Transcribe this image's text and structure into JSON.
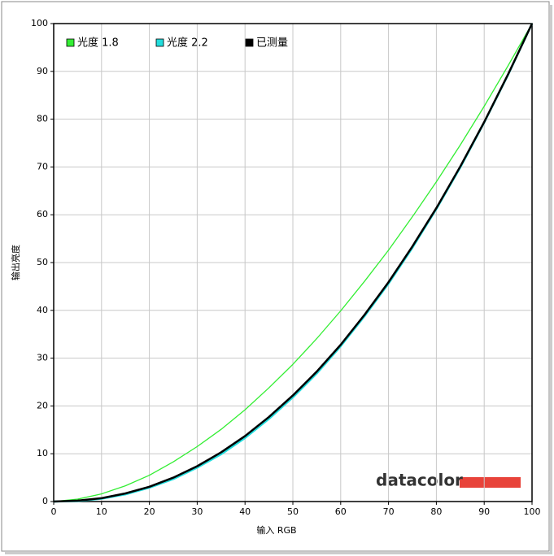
{
  "chart_data": {
    "type": "line",
    "x": [
      0,
      5,
      10,
      15,
      20,
      25,
      30,
      35,
      40,
      45,
      50,
      55,
      60,
      65,
      70,
      75,
      80,
      85,
      90,
      95,
      100
    ],
    "series": [
      {
        "name": "光度 1.8",
        "color": "#33ee33",
        "values": [
          0,
          0.5,
          1.6,
          3.3,
          5.5,
          8.3,
          11.5,
          15.1,
          19.2,
          23.8,
          28.7,
          34.1,
          39.9,
          46.1,
          52.6,
          59.6,
          66.9,
          74.6,
          82.7,
          91.2,
          100
        ]
      },
      {
        "name": "光度 2.2",
        "color": "#22dddd",
        "values": [
          0,
          0.1,
          0.6,
          1.5,
          2.9,
          4.7,
          7.1,
          9.9,
          13.3,
          17.3,
          21.8,
          26.8,
          32.5,
          38.8,
          45.6,
          53.1,
          61.2,
          69.9,
          79.3,
          89.3,
          100
        ]
      },
      {
        "name": "已测量",
        "color": "#000000",
        "values": [
          0,
          0.2,
          0.7,
          1.7,
          3.1,
          5.0,
          7.4,
          10.3,
          13.7,
          17.7,
          22.2,
          27.2,
          32.8,
          39.1,
          45.9,
          53.4,
          61.4,
          70.1,
          79.4,
          89.4,
          100
        ]
      }
    ],
    "xlabel": "输入 RGB",
    "ylabel": "输出亮度",
    "xlim": [
      0,
      100
    ],
    "xticks": [
      0,
      10,
      20,
      30,
      40,
      50,
      60,
      70,
      80,
      90,
      100
    ],
    "ylim": [
      0,
      100
    ],
    "yticks": [
      0,
      10,
      20,
      30,
      40,
      50,
      60,
      70,
      80,
      90,
      100
    ],
    "grid": true,
    "legend": "top-left",
    "logo": "datacolor"
  }
}
